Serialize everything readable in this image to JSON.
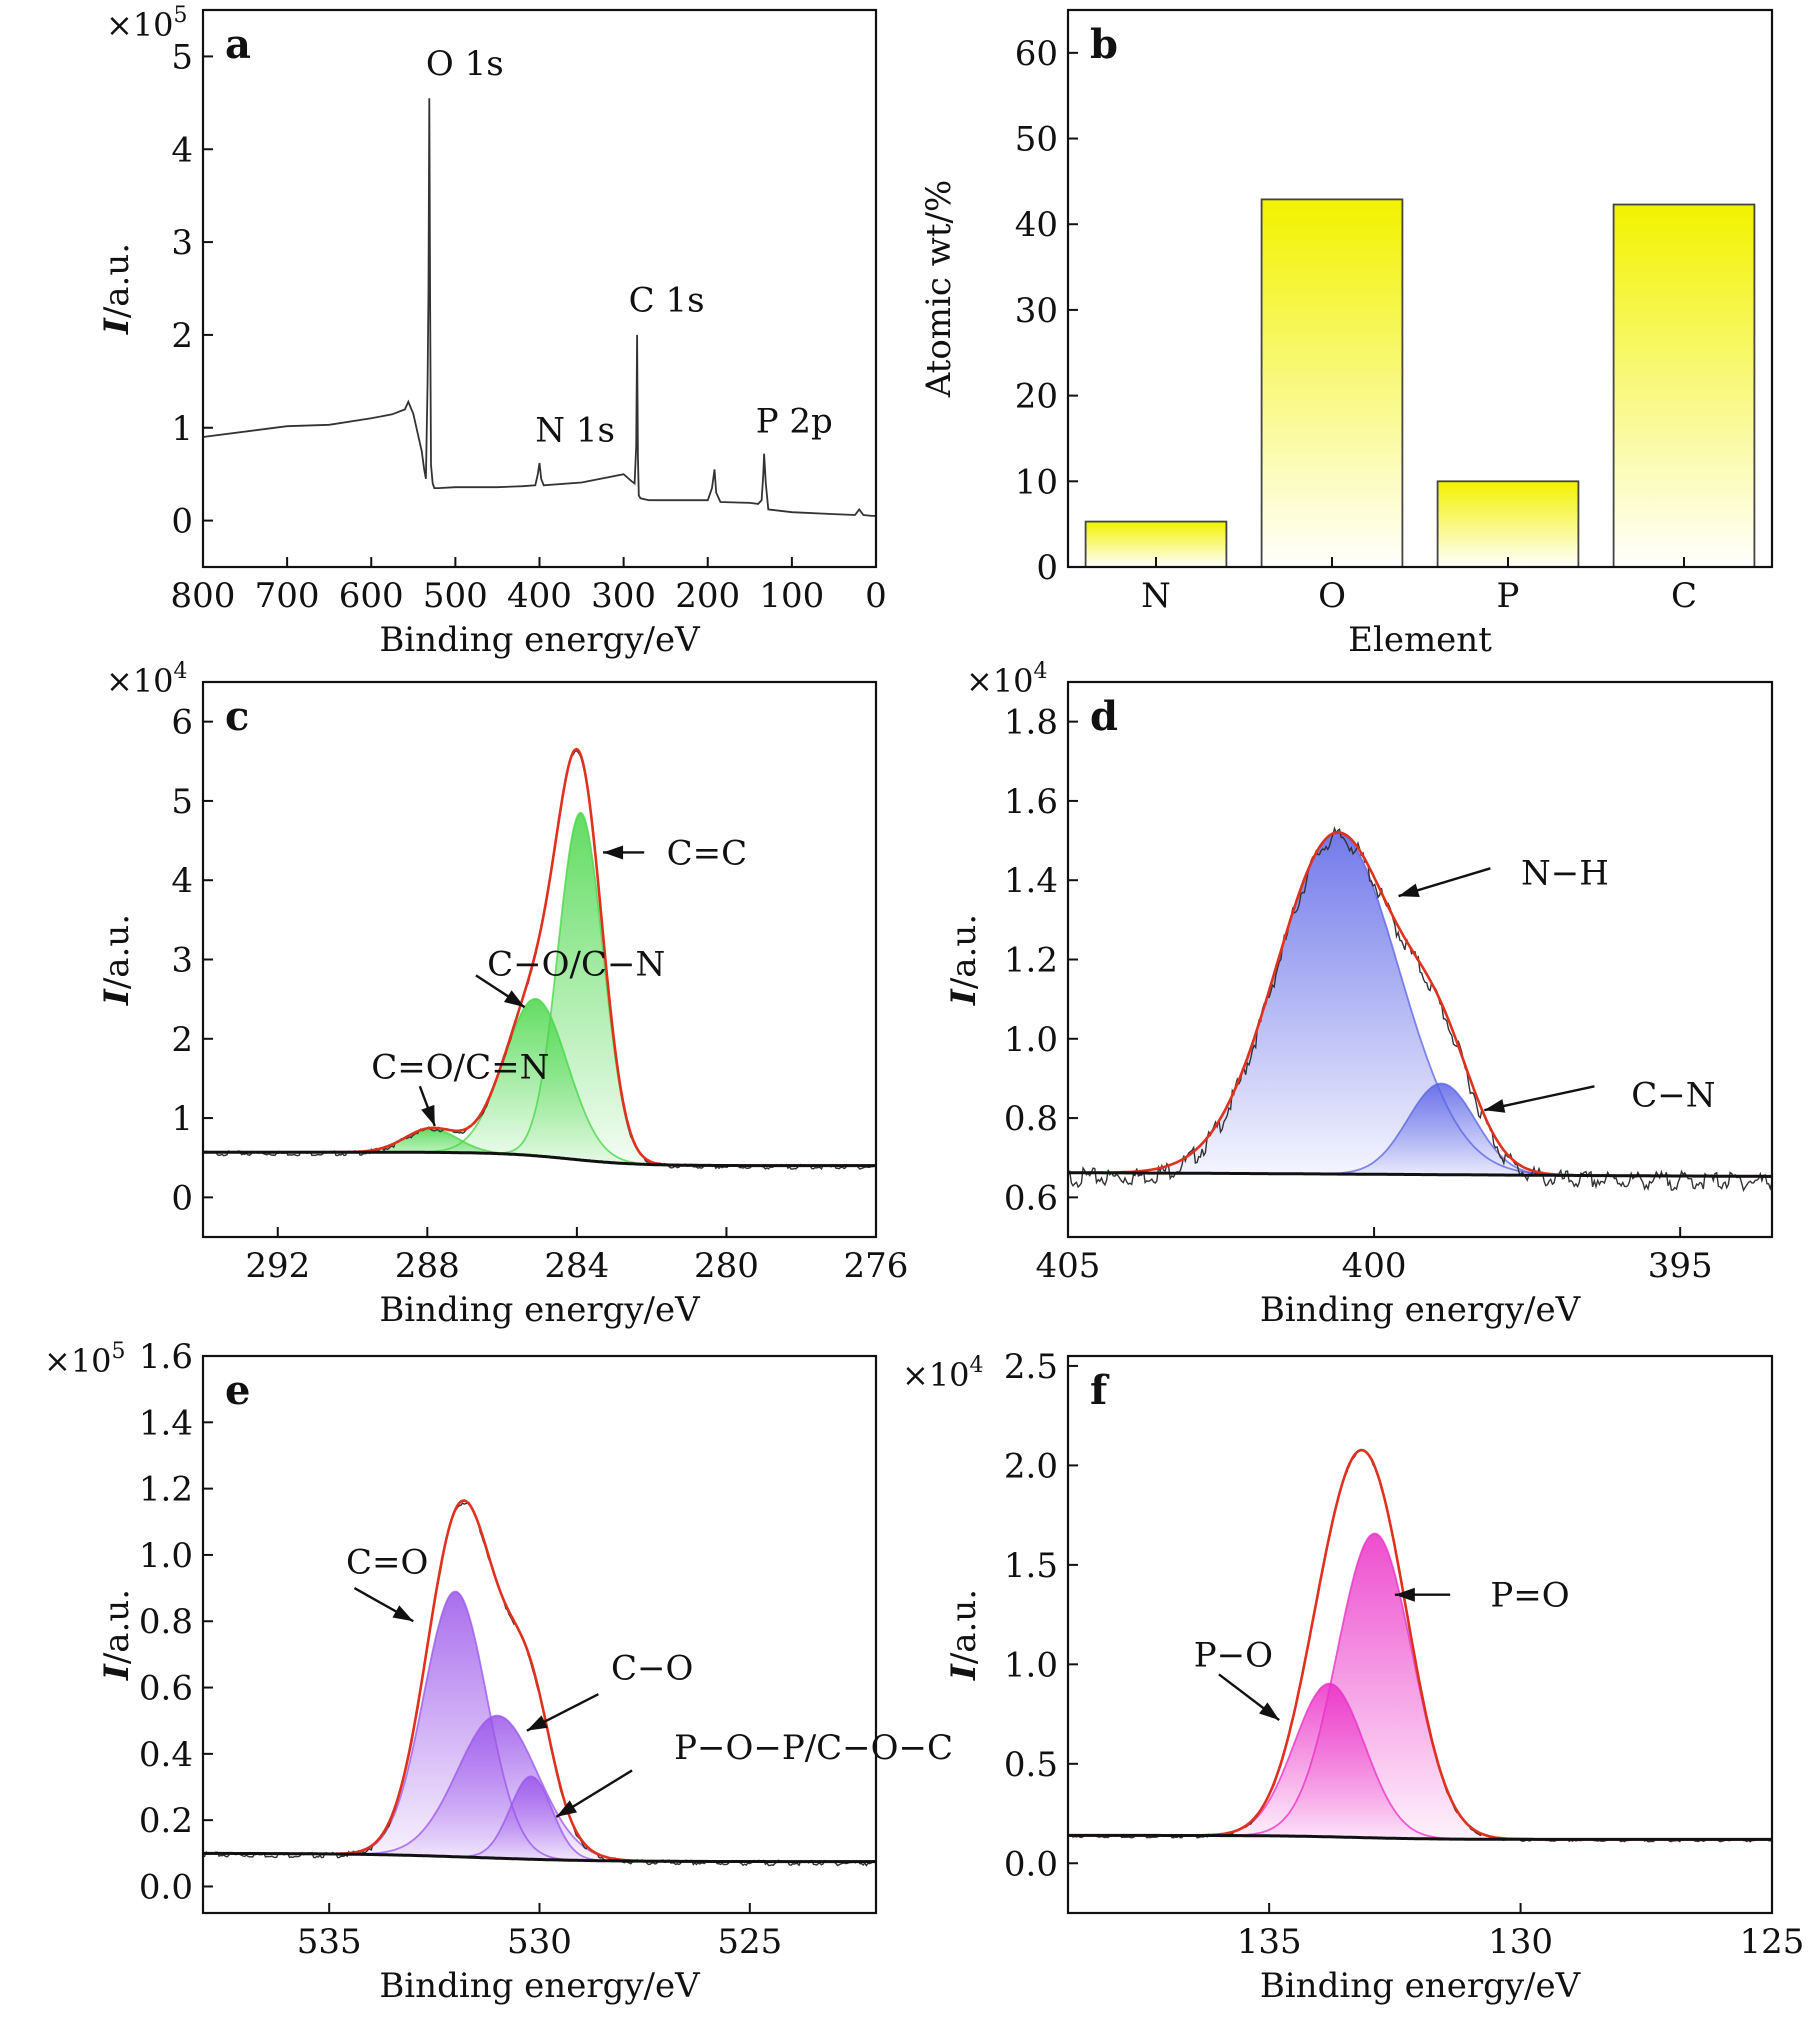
{
  "colors": {
    "envelope": "#e0301e",
    "raw": "#333333",
    "baseline": "#111111",
    "yellow": "#f2f200",
    "green": "#46d646",
    "blue": "#5a63e6",
    "purple": "#9a55ea",
    "magenta": "#ea2ec6"
  },
  "chart_data": [
    {
      "panel": "a",
      "type": "line",
      "multiplier": {
        "base": "×10",
        "exp": "5"
      },
      "xlabel": "Binding energy/eV",
      "ylabel": {
        "italic": "I",
        "rest": "/a.u."
      },
      "xlim": [
        800,
        0
      ],
      "ylim": [
        -0.5,
        5.5
      ],
      "xticks": [
        800,
        700,
        600,
        500,
        400,
        300,
        200,
        100,
        0
      ],
      "yticks": [
        0,
        1,
        2,
        3,
        4,
        5
      ],
      "series": [
        {
          "x": [
            800,
            700,
            650,
            600,
            575,
            560,
            556,
            550,
            545,
            540,
            537,
            535,
            533,
            532,
            531,
            530,
            529,
            527,
            525,
            520,
            500,
            450,
            420,
            405,
            402,
            400,
            398,
            395,
            350,
            300,
            290,
            287,
            285,
            284,
            283,
            282,
            280,
            270,
            250,
            200,
            195,
            192,
            190,
            185,
            150,
            140,
            136,
            134,
            133,
            131,
            128,
            100,
            50,
            25,
            20,
            15,
            5,
            0
          ],
          "y": [
            0.9,
            1.0,
            1.05,
            1.1,
            1.15,
            1.2,
            1.28,
            1.15,
            0.95,
            0.75,
            0.55,
            0.45,
            1.5,
            2.5,
            4.55,
            2.4,
            0.6,
            0.4,
            0.35,
            0.35,
            0.36,
            0.36,
            0.37,
            0.38,
            0.5,
            0.62,
            0.45,
            0.38,
            0.41,
            0.5,
            0.42,
            0.4,
            0.8,
            2.0,
            0.7,
            0.27,
            0.24,
            0.22,
            0.22,
            0.22,
            0.35,
            0.55,
            0.3,
            0.2,
            0.19,
            0.18,
            0.22,
            0.5,
            0.72,
            0.4,
            0.12,
            0.09,
            0.07,
            0.06,
            0.12,
            0.06,
            0.05,
            0.05
          ]
        }
      ],
      "annotations": [
        {
          "text": "O 1s",
          "x": 535,
          "y": 4.8
        },
        {
          "text": "C 1s",
          "x": 294,
          "y": 2.25
        },
        {
          "text": "N 1s",
          "x": 405,
          "y": 0.85
        },
        {
          "text": "P 2p",
          "x": 143,
          "y": 0.95
        }
      ]
    },
    {
      "panel": "b",
      "type": "bar",
      "xlabel": "Element",
      "ylabel": "Atomic wt/%",
      "ylim": [
        0,
        65
      ],
      "yticks": [
        0,
        10,
        20,
        30,
        40,
        50,
        60
      ],
      "categories": [
        "N",
        "O",
        "P",
        "C"
      ],
      "values": [
        5.3,
        42.9,
        10.0,
        42.3
      ]
    },
    {
      "panel": "c",
      "type": "line",
      "multiplier": {
        "base": "×10",
        "exp": "4"
      },
      "xlabel": "Binding energy/eV",
      "ylabel": {
        "italic": "I",
        "rest": "/a.u."
      },
      "xlim": [
        294,
        276
      ],
      "ylim": [
        -0.5,
        6.5
      ],
      "xticks": [
        292,
        288,
        284,
        280,
        276
      ],
      "yticks": [
        0,
        1,
        2,
        3,
        4,
        5,
        6
      ],
      "baseline": {
        "left": 0.57,
        "right": 0.4,
        "center": 284.2,
        "width": 0.9
      },
      "components": [
        {
          "name": "C=C",
          "center": 283.9,
          "amp": 4.38,
          "sigma": 0.6
        },
        {
          "name": "C−O/C−N",
          "center": 285.1,
          "amp": 1.98,
          "sigma": 0.85
        },
        {
          "name": "C=O/C=N",
          "center": 287.9,
          "amp": 0.3,
          "sigma": 0.7
        }
      ],
      "noise": 0.015,
      "annotations": [
        {
          "text": "C=C",
          "x": 281.6,
          "y": 4.35,
          "ax": 282.2,
          "ay": 4.35,
          "tx": 283.3,
          "ty": 4.35
        },
        {
          "text": "C−O/C−N",
          "x": 286.4,
          "y": 2.95,
          "ax": 286.7,
          "ay": 2.8,
          "tx": 285.4,
          "ty": 2.4
        },
        {
          "text": "C=O/C=N",
          "x": 289.5,
          "y": 1.65,
          "ax": 288.2,
          "ay": 1.4,
          "tx": 287.8,
          "ty": 0.9
        }
      ]
    },
    {
      "panel": "d",
      "type": "line",
      "multiplier": {
        "base": "×10",
        "exp": "4"
      },
      "xlabel": "Binding energy/eV",
      "ylabel": {
        "italic": "I",
        "rest": "/a.u."
      },
      "xlim": [
        405,
        393.5
      ],
      "ylim": [
        0.5,
        1.9
      ],
      "xticks": [
        405,
        400,
        395
      ],
      "yticks": [
        0.6,
        0.8,
        1.0,
        1.2,
        1.4,
        1.6,
        1.8
      ],
      "tick_format": 1,
      "baseline": {
        "left": 0.665,
        "right": 0.65,
        "center": 399.2,
        "width": 4
      },
      "components": [
        {
          "name": "N−H",
          "center": 400.6,
          "amp": 0.86,
          "sigma": 1.0
        },
        {
          "name": "C−N",
          "center": 398.9,
          "amp": 0.23,
          "sigma": 0.55
        }
      ],
      "noise": 0.012,
      "annotations": [
        {
          "text": "N−H",
          "x": 397.6,
          "y": 1.42,
          "ax": 398.1,
          "ay": 1.43,
          "tx": 399.6,
          "ty": 1.36
        },
        {
          "text": "C−N",
          "x": 395.8,
          "y": 0.86,
          "ax": 396.4,
          "ay": 0.88,
          "tx": 398.2,
          "ty": 0.82
        }
      ]
    },
    {
      "panel": "e",
      "type": "line",
      "multiplier": {
        "base": "×10",
        "exp": "5"
      },
      "xlabel": "Binding energy/eV",
      "ylabel": {
        "italic": "I",
        "rest": "/a.u."
      },
      "xlim": [
        538,
        522
      ],
      "ylim": [
        -0.08,
        1.6
      ],
      "xticks": [
        535,
        530,
        525
      ],
      "yticks": [
        0.0,
        0.2,
        0.4,
        0.6,
        0.8,
        1.0,
        1.2,
        1.4,
        1.6
      ],
      "tick_format": 1,
      "baseline": {
        "left": 0.1,
        "right": 0.075,
        "center": 531.5,
        "width": 1.4
      },
      "components": [
        {
          "name": "C=O",
          "center": 532.0,
          "amp": 0.8,
          "sigma": 0.75
        },
        {
          "name": "C−O",
          "center": 531.0,
          "amp": 0.43,
          "sigma": 0.95
        },
        {
          "name": "P−O−P/C−O−C",
          "center": 530.2,
          "amp": 0.25,
          "sigma": 0.5
        }
      ],
      "noise": 0.004,
      "annotations": [
        {
          "text": "C=O",
          "x": 534.6,
          "y": 0.98,
          "ax": 534.4,
          "ay": 0.9,
          "tx": 533.0,
          "ty": 0.8
        },
        {
          "text": "C−O",
          "x": 528.3,
          "y": 0.66,
          "ax": 528.6,
          "ay": 0.58,
          "tx": 530.3,
          "ty": 0.47
        },
        {
          "text": "P−O−P/C−O−C",
          "x": 526.8,
          "y": 0.42,
          "ax": 527.8,
          "ay": 0.35,
          "tx": 529.6,
          "ty": 0.21
        }
      ]
    },
    {
      "panel": "f",
      "type": "line",
      "multiplier": {
        "base": "×10",
        "exp": "4"
      },
      "xlabel": "Binding energy/eV",
      "ylabel": {
        "italic": "I",
        "rest": "/a.u."
      },
      "xlim": [
        139,
        125
      ],
      "ylim": [
        -0.25,
        2.55
      ],
      "xticks": [
        135,
        130,
        125
      ],
      "yticks": [
        0.0,
        0.5,
        1.0,
        1.5,
        2.0,
        2.5
      ],
      "tick_format": 1,
      "baseline": {
        "left": 0.14,
        "right": 0.12,
        "center": 133.3,
        "width": 0.8
      },
      "components": [
        {
          "name": "P=O",
          "center": 132.9,
          "amp": 1.53,
          "sigma": 0.75
        },
        {
          "name": "P−O",
          "center": 133.8,
          "amp": 0.77,
          "sigma": 0.7
        }
      ],
      "noise": 0.004,
      "annotations": [
        {
          "text": "P=O",
          "x": 130.6,
          "y": 1.35,
          "ax": 131.4,
          "ay": 1.35,
          "tx": 132.5,
          "ty": 1.35
        },
        {
          "text": "P−O",
          "x": 136.5,
          "y": 1.05,
          "ax": 136.0,
          "ay": 0.95,
          "tx": 134.8,
          "ty": 0.72
        }
      ]
    }
  ]
}
